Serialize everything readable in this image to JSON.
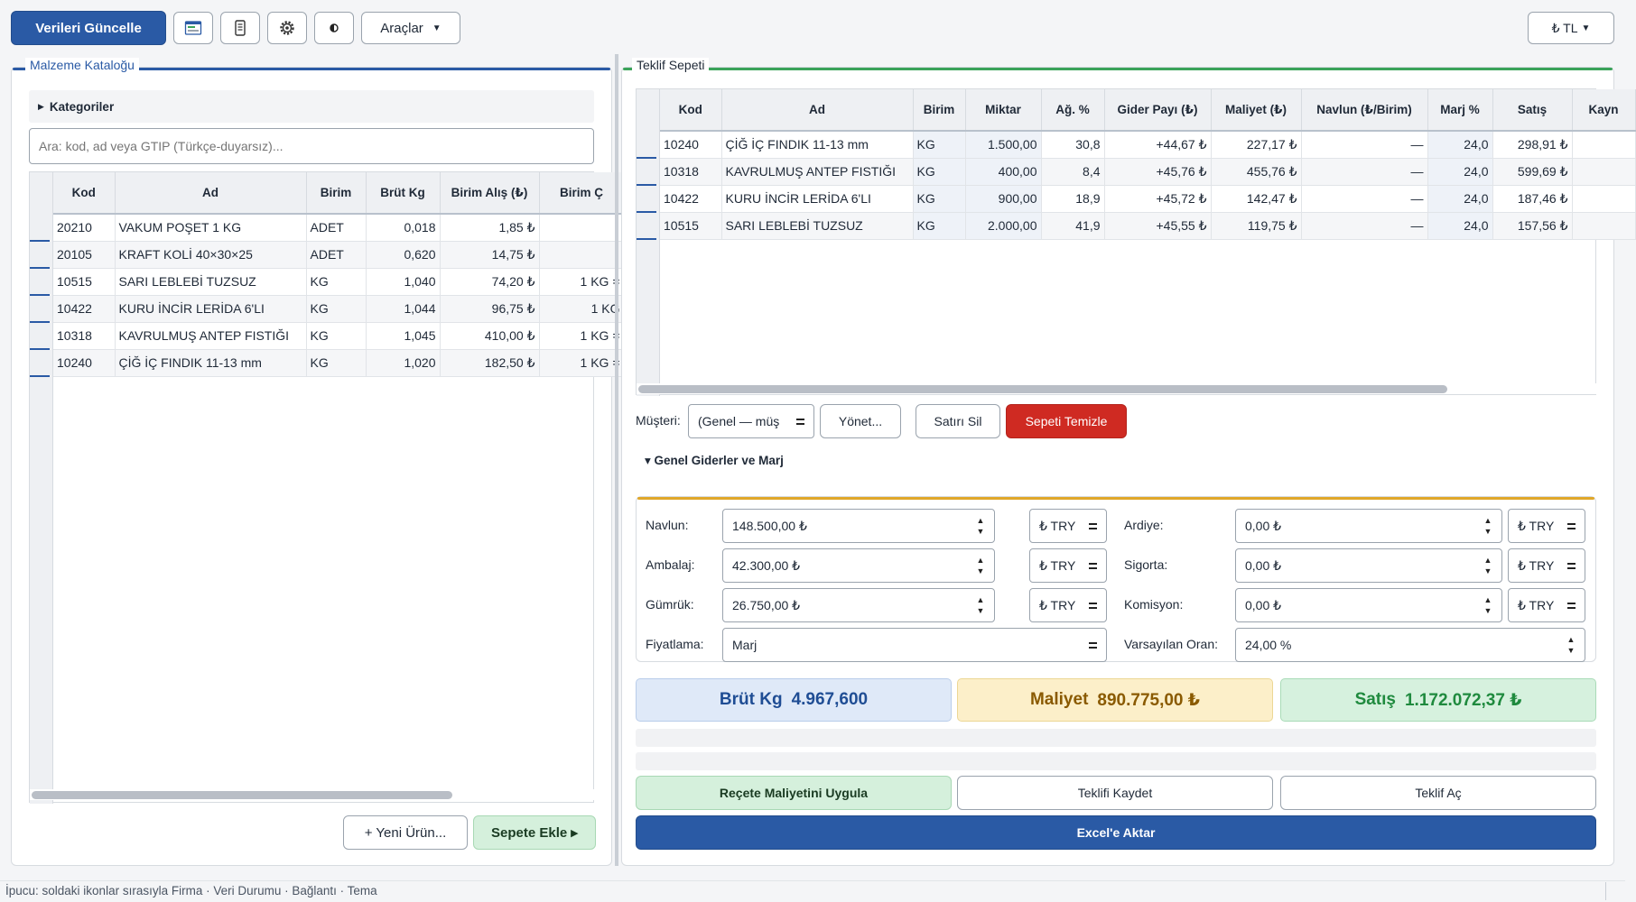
{
  "toolbar": {
    "refresh_label": "Verileri Güncelle",
    "tools_label": "Araçlar",
    "currency_label": "₺ TL"
  },
  "catalog": {
    "title": "Malzeme Kataloğu",
    "categories_label": "Kategoriler",
    "search_placeholder": "Ara: kod, ad veya GTIP (Türkçe-duyarsız)...",
    "columns": [
      "Kod",
      "Ad",
      "Birim",
      "Brüt Kg",
      "Birim Alış (₺)",
      "Birim Ç"
    ],
    "rows": [
      {
        "kod": "20210",
        "ad": "VAKUM POŞET 1 KG",
        "birim": "ADET",
        "brut": "0,018",
        "alis": "1,85 ₺",
        "extra": ""
      },
      {
        "kod": "20105",
        "ad": "KRAFT KOLİ 40×30×25",
        "birim": "ADET",
        "brut": "0,620",
        "alis": "14,75 ₺",
        "extra": ""
      },
      {
        "kod": "10515",
        "ad": "SARI LEBLEBİ TUZSUZ",
        "birim": "KG",
        "brut": "1,040",
        "alis": "74,20 ₺",
        "extra": "1 KG ="
      },
      {
        "kod": "10422",
        "ad": "KURU İNCİR LERİDA 6'LI",
        "birim": "KG",
        "brut": "1,044",
        "alis": "96,75 ₺",
        "extra": "1 KG"
      },
      {
        "kod": "10318",
        "ad": "KAVRULMUŞ ANTEP FISTIĞI",
        "birim": "KG",
        "brut": "1,045",
        "alis": "410,00 ₺",
        "extra": "1 KG ="
      },
      {
        "kod": "10240",
        "ad": "ÇİĞ İÇ FINDIK 11-13 mm",
        "birim": "KG",
        "brut": "1,020",
        "alis": "182,50 ₺",
        "extra": "1 KG ="
      }
    ],
    "new_product_label": "+ Yeni Ürün...",
    "add_to_cart_label": "Sepete Ekle ▸"
  },
  "cart": {
    "title": "Teklif Sepeti",
    "columns": [
      "Kod",
      "Ad",
      "Birim",
      "Miktar",
      "Ağ. %",
      "Gider Payı (₺)",
      "Maliyet (₺)",
      "Navlun (₺/Birim)",
      "Marj %",
      "Satış",
      "Kayn"
    ],
    "rows": [
      {
        "kod": "10240",
        "ad": "ÇİĞ İÇ FINDIK 11-13 mm",
        "birim": "KG",
        "miktar": "1.500,00",
        "ag": "30,8",
        "gider": "+44,67 ₺",
        "maliyet": "227,17 ₺",
        "navlun": "—",
        "marj": "24,0",
        "satis": "298,91 ₺"
      },
      {
        "kod": "10318",
        "ad": "KAVRULMUŞ ANTEP FISTIĞI",
        "birim": "KG",
        "miktar": "400,00",
        "ag": "8,4",
        "gider": "+45,76 ₺",
        "maliyet": "455,76 ₺",
        "navlun": "—",
        "marj": "24,0",
        "satis": "599,69 ₺"
      },
      {
        "kod": "10422",
        "ad": "KURU İNCİR LERİDA 6'LI",
        "birim": "KG",
        "miktar": "900,00",
        "ag": "18,9",
        "gider": "+45,72 ₺",
        "maliyet": "142,47 ₺",
        "navlun": "—",
        "marj": "24,0",
        "satis": "187,46 ₺"
      },
      {
        "kod": "10515",
        "ad": "SARI LEBLEBİ TUZSUZ",
        "birim": "KG",
        "miktar": "2.000,00",
        "ag": "41,9",
        "gider": "+45,55 ₺",
        "maliyet": "119,75 ₺",
        "navlun": "—",
        "marj": "24,0",
        "satis": "157,56 ₺"
      }
    ],
    "customer_label": "Müşteri:",
    "customer_value": "(Genel — müş",
    "manage_label": "Yönet...",
    "delete_row_label": "Satırı Sil",
    "clear_cart_label": "Sepeti Temizle"
  },
  "expenses": {
    "title": "▾ Genel Giderler ve Marj",
    "navlun_label": "Navlun:",
    "navlun_value": "148.500,00 ₺",
    "ambalaj_label": "Ambalaj:",
    "ambalaj_value": "42.300,00 ₺",
    "gumruk_label": "Gümrük:",
    "gumruk_value": "26.750,00 ₺",
    "ardiye_label": "Ardiye:",
    "ardiye_value": "0,00 ₺",
    "sigorta_label": "Sigorta:",
    "sigorta_value": "0,00 ₺",
    "komisyon_label": "Komisyon:",
    "komisyon_value": "0,00 ₺",
    "currency_value": "₺ TRY",
    "pricing_label": "Fiyatlama:",
    "pricing_value": "Marj",
    "default_rate_label": "Varsayılan Oran:",
    "default_rate_value": "24,00 %"
  },
  "summary": {
    "brut_label": "Brüt Kg",
    "brut_value": "4.967,600",
    "maliyet_label": "Maliyet",
    "maliyet_value": "890.775,00 ₺",
    "satis_label": "Satış",
    "satis_value": "1.172.072,37 ₺"
  },
  "actions": {
    "apply_recipe_label": "Reçete Maliyetini Uygula",
    "save_offer_label": "Teklifi Kaydet",
    "open_offer_label": "Teklif Aç",
    "export_excel_label": "Excel'e Aktar"
  },
  "status": {
    "hint": "İpucu: soldaki ikonlar sırasıyla Firma · Veri Durumu · Bağlantı · Tema"
  },
  "colors": {
    "primary": "#2a5aa5",
    "danger": "#cf2a22",
    "catalog_accent": "#2a5aa5",
    "cart_accent": "#3aa35a",
    "expenses_accent": "#e0a72a"
  }
}
